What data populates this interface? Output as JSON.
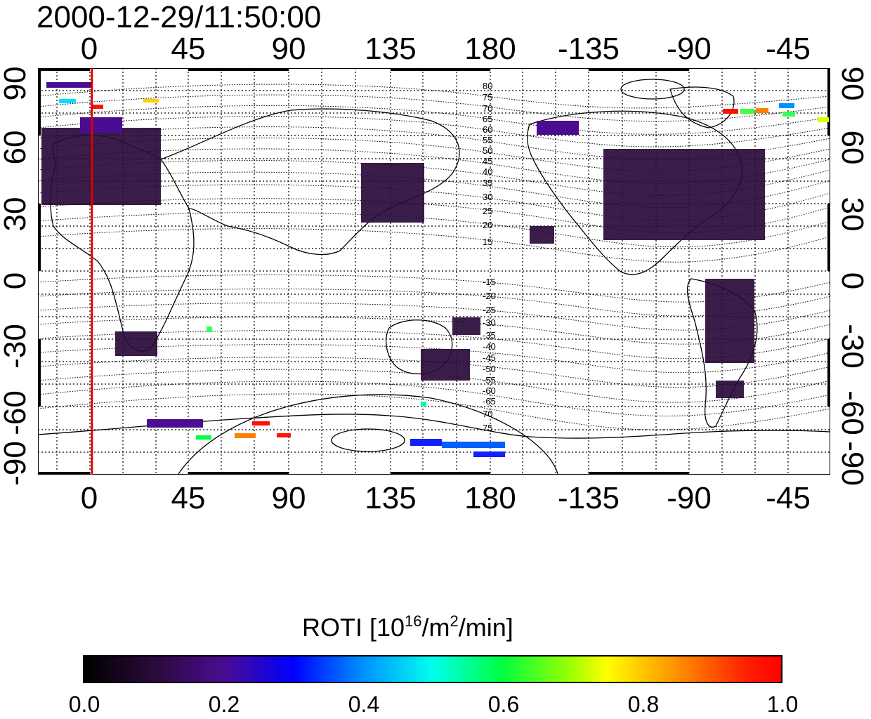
{
  "title": "2000-12-29/11:50:00",
  "axes": {
    "top_ticks": [
      "0",
      "45",
      "90",
      "135",
      "180",
      "-135",
      "-90",
      "-45"
    ],
    "bottom_ticks": [
      "0",
      "45",
      "90",
      "135",
      "180",
      "-135",
      "-90",
      "-45"
    ],
    "left_ticks": [
      "90",
      "60",
      "30",
      "0",
      "-30",
      "-60",
      "-90"
    ],
    "right_ticks": [
      "90",
      "60",
      "30",
      "0",
      "-30",
      "-60",
      "-90"
    ]
  },
  "contour_labels": {
    "north": [
      "80",
      "75",
      "70",
      "65",
      "60",
      "55",
      "50",
      "45",
      "40",
      "35",
      "30",
      "25",
      "20",
      "15"
    ],
    "south": [
      "-15",
      "-20",
      "-25",
      "-30",
      "-35",
      "-40",
      "-45",
      "-50",
      "-55",
      "-60",
      "-65",
      "70",
      "75"
    ]
  },
  "colorbar": {
    "title_prefix": "ROTI  [10",
    "title_sup1": "16",
    "title_mid": "/m",
    "title_sup2": "2",
    "title_suffix": "/min]",
    "ticks": [
      "0.0",
      "0.2",
      "0.4",
      "0.6",
      "0.8",
      "1.0"
    ]
  },
  "colors": {
    "marker_line": "#e00000",
    "low": "#2a0a3a",
    "high": "#ff0000"
  },
  "map_extent": {
    "lon_left_edge": -22,
    "lon_right_edge": 338,
    "lat_top": 90,
    "lat_bottom": -90,
    "marker_longitude": 2.5
  }
}
